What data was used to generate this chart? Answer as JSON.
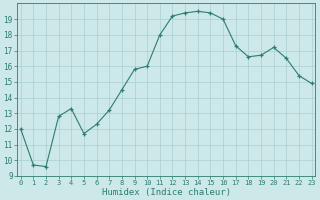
{
  "x": [
    0,
    1,
    2,
    3,
    4,
    5,
    6,
    7,
    8,
    9,
    10,
    11,
    12,
    13,
    14,
    15,
    16,
    17,
    18,
    19,
    20,
    21,
    22,
    23
  ],
  "y": [
    12,
    9.7,
    9.6,
    12.8,
    13.3,
    11.7,
    12.3,
    13.2,
    14.5,
    15.8,
    16.0,
    18.0,
    19.2,
    19.4,
    19.5,
    19.4,
    19.0,
    17.3,
    16.6,
    16.7,
    17.2,
    16.5,
    15.4,
    14.9
  ],
  "ylim": [
    9,
    20
  ],
  "yticks": [
    9,
    10,
    11,
    12,
    13,
    14,
    15,
    16,
    17,
    18,
    19
  ],
  "xticks": [
    0,
    1,
    2,
    3,
    4,
    5,
    6,
    7,
    8,
    9,
    10,
    11,
    12,
    13,
    14,
    15,
    16,
    17,
    18,
    19,
    20,
    21,
    22,
    23
  ],
  "xlabel": "Humidex (Indice chaleur)",
  "line_color": "#2e7d6e",
  "marker_color": "#2e7d6e",
  "bg_color": "#cce8e8",
  "grid_color": "#aacfcf",
  "tick_color": "#2e7d6e",
  "xlim_left": -0.3,
  "xlim_right": 23.3
}
